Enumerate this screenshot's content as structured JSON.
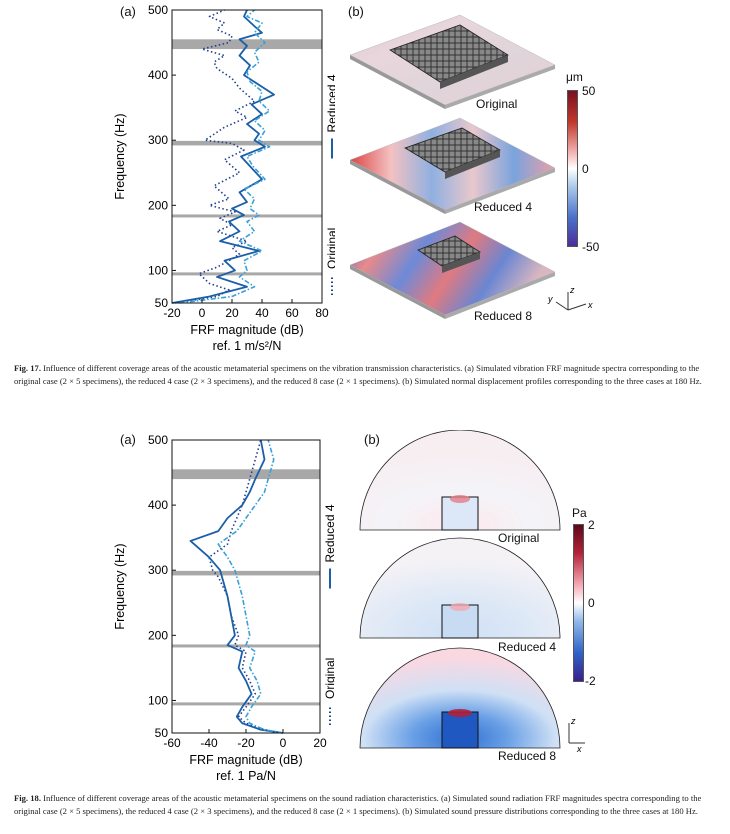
{
  "fig17": {
    "panel_a": "(a)",
    "panel_b": "(b)",
    "chart_data": {
      "type": "line",
      "xlabel": "FRF magnitude (dB)",
      "xunit": "ref. 1 m/s²/N",
      "ylabel": "Frequency (Hz)",
      "xlim": [
        -20,
        80
      ],
      "ylim": [
        50,
        500
      ],
      "xticks": [
        "-20",
        "0",
        "20",
        "40",
        "60",
        "80"
      ],
      "yticks": [
        "50",
        "100",
        "200",
        "300",
        "400",
        "500"
      ],
      "bands": [
        [
          93,
          97
        ],
        [
          182,
          186
        ],
        [
          292,
          299
        ],
        [
          440,
          455
        ]
      ],
      "series": [
        {
          "name": "Original",
          "style": "dotted",
          "color": "#1f3f8f",
          "x": [
            -18,
            10,
            18,
            5,
            -2,
            10,
            18,
            25,
            20,
            30,
            10,
            20,
            12,
            22,
            5,
            18,
            8,
            25,
            15,
            28,
            20,
            2,
            15,
            30,
            22,
            35,
            25,
            20,
            10,
            8,
            15,
            0,
            18,
            20,
            10,
            15,
            5,
            15
          ],
          "y": [
            50,
            60,
            70,
            80,
            95,
            105,
            115,
            125,
            135,
            145,
            160,
            170,
            180,
            190,
            200,
            210,
            230,
            250,
            270,
            285,
            295,
            300,
            320,
            335,
            345,
            360,
            380,
            395,
            410,
            420,
            430,
            440,
            450,
            460,
            470,
            480,
            490,
            500
          ]
        },
        {
          "name": "Reduced 4",
          "style": "solid",
          "color": "#1a5fa8",
          "x": [
            -20,
            5,
            30,
            10,
            22,
            15,
            38,
            12,
            25,
            18,
            28,
            20,
            30,
            25,
            40,
            32,
            26,
            42,
            35,
            38,
            30,
            40,
            33,
            48,
            38,
            28,
            32,
            25,
            30,
            25,
            40,
            35,
            28,
            30
          ],
          "y": [
            50,
            60,
            75,
            90,
            100,
            115,
            130,
            145,
            160,
            175,
            185,
            195,
            205,
            220,
            240,
            260,
            275,
            290,
            300,
            310,
            325,
            340,
            355,
            370,
            385,
            400,
            415,
            430,
            445,
            455,
            465,
            475,
            490,
            500
          ]
        },
        {
          "name": "Reduced 8",
          "style": "dashdot",
          "color": "#3aa0d8",
          "x": [
            -15,
            20,
            35,
            25,
            30,
            28,
            40,
            25,
            35,
            30,
            38,
            32,
            35,
            28,
            42,
            34,
            30,
            45,
            38,
            42,
            35,
            45,
            38,
            40,
            32,
            30,
            38,
            35,
            42,
            35,
            40,
            30,
            35
          ],
          "y": [
            50,
            60,
            75,
            90,
            100,
            115,
            130,
            145,
            160,
            175,
            185,
            195,
            210,
            225,
            240,
            260,
            275,
            290,
            300,
            315,
            330,
            345,
            360,
            375,
            390,
            405,
            420,
            435,
            450,
            465,
            480,
            490,
            500
          ]
        }
      ]
    },
    "legend_original": "Original",
    "legend_r4": "Reduced 4",
    "legend_r8": "Reduced 8",
    "colorbar_unit": "μm",
    "colorbar_ticks": [
      "50",
      "0",
      "-50"
    ],
    "view_labels": [
      "Original",
      "Reduced 4",
      "Reduced 8"
    ],
    "axes_triad": {
      "x": "x",
      "y": "y",
      "z": "z"
    },
    "caption_label": "Fig. 17.",
    "caption_text": "Influence of different coverage areas of the acoustic metamaterial specimens on the vibration transmission characteristics. (a) Simulated vibration FRF magnitude spectra corresponding to the original case (2 × 5 specimens), the reduced 4 case (2 × 3 specimens), and the reduced 8 case (2 × 1 specimens). (b) Simulated normal displacement profiles corresponding to the three cases at 180 Hz."
  },
  "fig18": {
    "panel_a": "(a)",
    "panel_b": "(b)",
    "chart_data": {
      "type": "line",
      "xlabel": "FRF magnitude (dB)",
      "xunit": "ref. 1 Pa/N",
      "ylabel": "Frequency (Hz)",
      "xlim": [
        -60,
        20
      ],
      "ylim": [
        50,
        500
      ],
      "xticks": [
        "-60",
        "-40",
        "-20",
        "0",
        "20"
      ],
      "yticks": [
        "50",
        "100",
        "200",
        "300",
        "400",
        "500"
      ],
      "bands": [
        [
          93,
          97
        ],
        [
          182,
          186
        ],
        [
          292,
          299
        ],
        [
          440,
          455
        ]
      ],
      "series": [
        {
          "name": "Original",
          "style": "dotted",
          "color": "#1f3f8f",
          "x": [
            0,
            -10,
            -20,
            -24,
            -20,
            -15,
            -18,
            -22,
            -20,
            -26,
            -24,
            -28,
            -30,
            -35,
            -38,
            -40,
            -30,
            -28,
            -25,
            -22,
            -20,
            -18,
            -15,
            -12
          ],
          "y": [
            50,
            55,
            65,
            75,
            90,
            110,
            130,
            150,
            175,
            185,
            200,
            230,
            260,
            290,
            300,
            320,
            340,
            360,
            380,
            400,
            420,
            440,
            470,
            500
          ]
        },
        {
          "name": "Reduced 4",
          "style": "solid",
          "color": "#1a5fa8",
          "x": [
            0,
            -12,
            -22,
            -25,
            -22,
            -17,
            -20,
            -24,
            -22,
            -30,
            -26,
            -28,
            -30,
            -33,
            -34,
            -40,
            -50,
            -35,
            -30,
            -22,
            -18,
            -15,
            -10,
            -12
          ],
          "y": [
            50,
            55,
            65,
            75,
            90,
            110,
            130,
            150,
            175,
            185,
            200,
            230,
            260,
            290,
            300,
            320,
            345,
            360,
            380,
            400,
            420,
            440,
            470,
            500
          ]
        },
        {
          "name": "Reduced 8",
          "style": "dashdot",
          "color": "#3aa0d8",
          "x": [
            0,
            -10,
            -18,
            -20,
            -17,
            -12,
            -14,
            -18,
            -15,
            -20,
            -18,
            -20,
            -22,
            -25,
            -26,
            -30,
            -35,
            -25,
            -20,
            -15,
            -10,
            -8,
            -5,
            -8
          ],
          "y": [
            50,
            55,
            65,
            75,
            90,
            110,
            130,
            150,
            175,
            185,
            200,
            230,
            260,
            290,
            300,
            320,
            340,
            360,
            380,
            400,
            420,
            440,
            470,
            500
          ]
        }
      ]
    },
    "legend_original": "Original",
    "legend_r4": "Reduced 4",
    "legend_r8": "Reduced 8",
    "colorbar_unit": "Pa",
    "colorbar_ticks": [
      "2",
      "0",
      "-2"
    ],
    "view_labels": [
      "Original",
      "Reduced 4",
      "Reduced 8"
    ],
    "axes_triad": {
      "x": "x",
      "z": "z"
    },
    "caption_label": "Fig. 18.",
    "caption_text": "Influence of different coverage areas of the acoustic metamaterial specimens on the sound radiation characteristics. (a) Simulated sound radiation FRF magnitudes spectra corresponding to the original case (2 × 5 specimens), the reduced 4 case (2 × 3 specimens), and the reduced 8 case (2 × 1 specimens). (b) Simulated sound pressure distributions corresponding to the three cases at 180 Hz."
  }
}
